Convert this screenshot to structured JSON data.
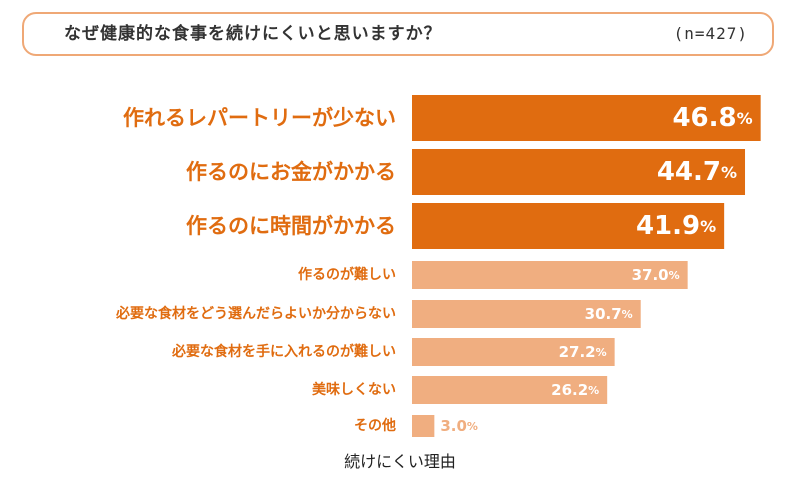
{
  "header": {
    "question": "なぜ健康的な食事を続けにくいと思いますか？",
    "sample_size": "(n=427)"
  },
  "colors": {
    "primary": "#e06c10",
    "secondary": "#f0ae80",
    "label": "#e06c10",
    "border": "#efa876"
  },
  "chart_data": {
    "type": "bar",
    "orientation": "horizontal",
    "categories": [
      "作れるレパートリーが少ない",
      "作るのにお金がかかる",
      "作るのに時間がかかる",
      "作るのが難しい",
      "必要な食材をどう選んだらよいか分からない",
      "必要な食材を手に入れるのが難しい",
      "美味しくない",
      "その他"
    ],
    "values": [
      46.8,
      44.7,
      41.9,
      37.0,
      30.7,
      27.2,
      26.2,
      3.0
    ],
    "value_labels": [
      "46.8",
      "44.7",
      "41.9",
      "37.0",
      "30.7",
      "27.2",
      "26.2",
      "3.0"
    ],
    "unit": "%",
    "highlight_top": 3,
    "title": "",
    "xlabel": "続けにくい理由",
    "ylabel": "",
    "xlim": [
      0,
      50
    ],
    "grid": false,
    "legend": "none"
  }
}
